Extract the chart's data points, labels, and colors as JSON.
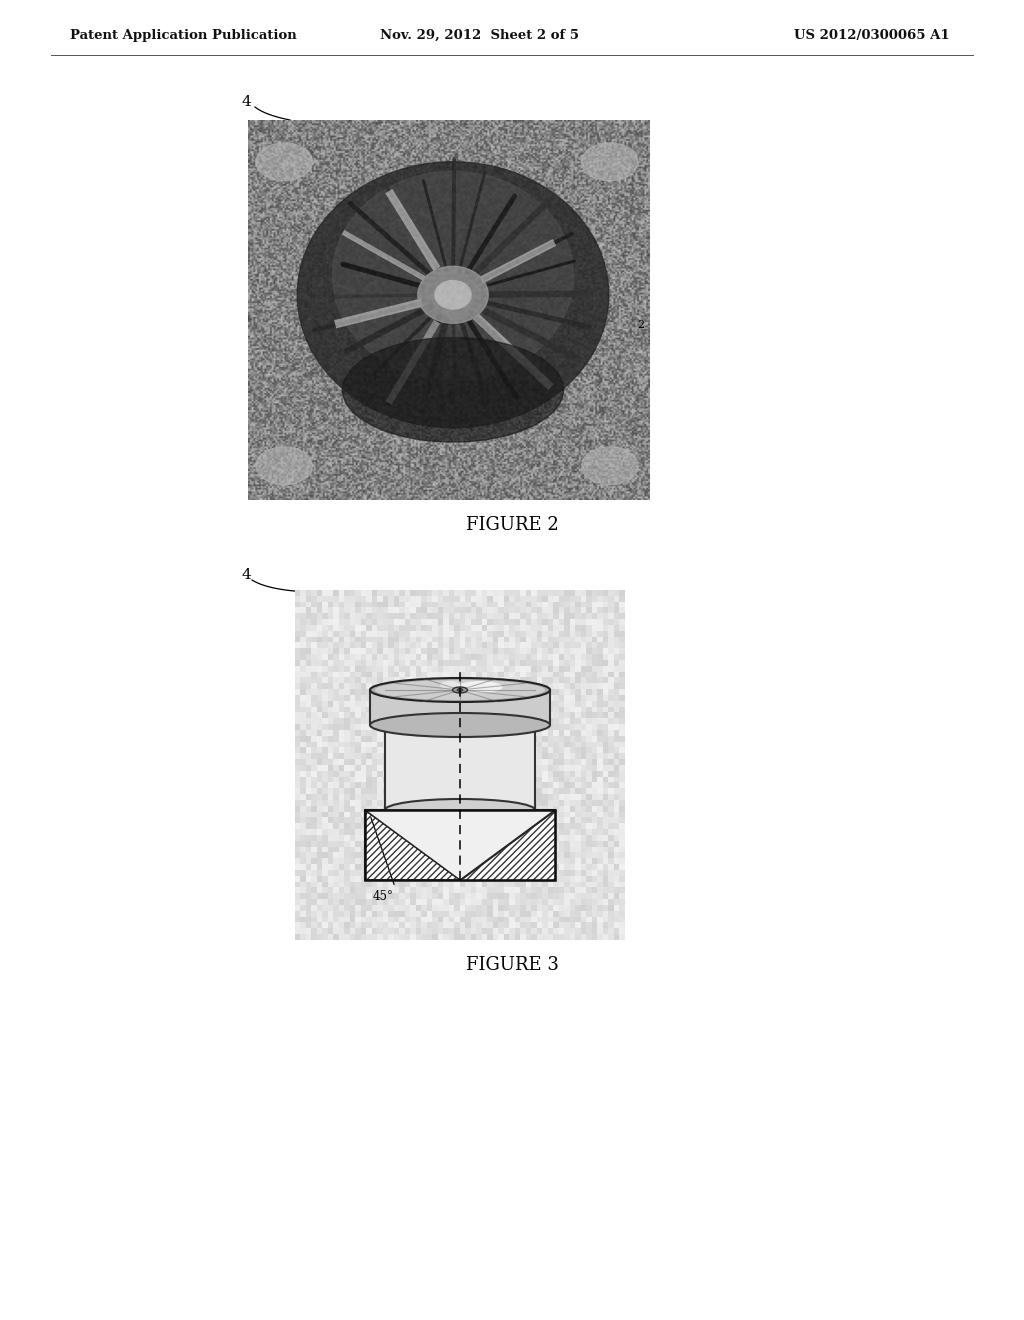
{
  "bg_color": "#ffffff",
  "header_text_left": "Patent Application Publication",
  "header_text_mid": "Nov. 29, 2012  Sheet 2 of 5",
  "header_text_right": "US 2012/0300065 A1",
  "fig2_label": "FIGURE 2",
  "fig3_label": "FIGURE 3",
  "label_4_fig2": "4",
  "label_4_fig3": "4",
  "label_2_fig2": "2",
  "label_45": "45°"
}
